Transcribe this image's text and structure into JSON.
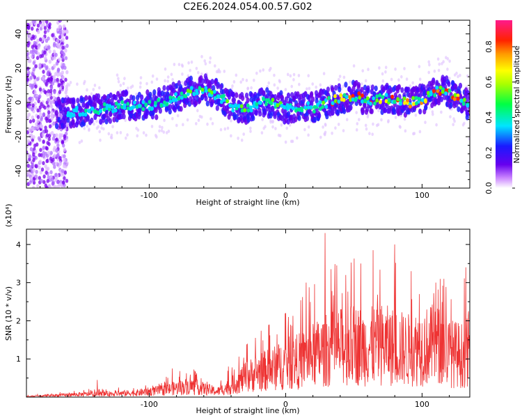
{
  "title": "C2E6.2024.054.00.57.G02",
  "chart_data": [
    {
      "type": "heatmap",
      "xlabel": "Height of straight line (km)",
      "ylabel": "Frequency (Hz)",
      "xlim": [
        -190,
        135
      ],
      "ylim": [
        -50,
        48
      ],
      "xticks": [
        -100,
        0,
        100
      ],
      "yticks": [
        -40,
        -20,
        0,
        20,
        40
      ],
      "colorbar": {
        "label": "Normalized spectral amplitude",
        "range": [
          0,
          0.95
        ],
        "ticks": [
          0.0,
          0.2,
          0.4,
          0.6,
          0.8
        ]
      },
      "ridge": {
        "x": [
          -160,
          -140,
          -120,
          -100,
          -85,
          -70,
          -60,
          -50,
          -40,
          -30,
          -20,
          -10,
          0,
          10,
          20,
          30,
          40,
          50,
          60,
          70,
          80,
          90,
          100,
          110,
          115,
          120,
          130,
          135
        ],
        "y": [
          -6,
          -4,
          -2,
          -2,
          2,
          6,
          8,
          4,
          -2,
          -4,
          0,
          0,
          -4,
          -2,
          -3,
          0,
          2,
          4,
          1,
          2,
          2,
          0,
          2,
          6,
          8,
          5,
          1,
          -4
        ]
      }
    },
    {
      "type": "line",
      "xlabel": "Height of straight line (km)",
      "ylabel": "SNR (10 * v/v)",
      "y_multiplier": "(x10⁴)",
      "xlim": [
        -190,
        135
      ],
      "ylim": [
        0,
        4.4
      ],
      "xticks": [
        -100,
        0,
        100
      ],
      "yticks": [
        1,
        2,
        3,
        4
      ],
      "series": [
        {
          "color": "#ee3333",
          "envelope_x": [
            -190,
            -150,
            -130,
            -110,
            -90,
            -70,
            -50,
            -40,
            -30,
            -20,
            -10,
            0,
            10,
            20,
            30,
            40,
            50,
            60,
            70,
            80,
            90,
            100,
            110,
            120,
            130,
            135
          ],
          "envelope_y": [
            0.02,
            0.1,
            0.12,
            0.15,
            0.25,
            0.4,
            0.2,
            0.4,
            0.7,
            0.9,
            1.0,
            1.2,
            1.3,
            1.5,
            1.7,
            1.8,
            1.9,
            1.8,
            1.9,
            1.8,
            1.7,
            1.8,
            1.9,
            1.6,
            1.5,
            1.8
          ],
          "peaks": [
            {
              "x": -138,
              "y": 0.45
            },
            {
              "x": -83,
              "y": 0.75
            },
            {
              "x": -42,
              "y": 0.8
            },
            {
              "x": -28,
              "y": 1.4
            },
            {
              "x": -12,
              "y": 1.9
            },
            {
              "x": 2,
              "y": 2.1
            },
            {
              "x": 15,
              "y": 3.0
            },
            {
              "x": 29,
              "y": 4.3
            },
            {
              "x": 44,
              "y": 3.2
            },
            {
              "x": 55,
              "y": 3.5
            },
            {
              "x": 64,
              "y": 3.85
            },
            {
              "x": 80,
              "y": 4.0
            },
            {
              "x": 92,
              "y": 3.3
            },
            {
              "x": 98,
              "y": 2.7
            },
            {
              "x": 110,
              "y": 3.0
            },
            {
              "x": 116,
              "y": 3.1
            },
            {
              "x": 132,
              "y": 3.4
            }
          ]
        }
      ]
    }
  ]
}
